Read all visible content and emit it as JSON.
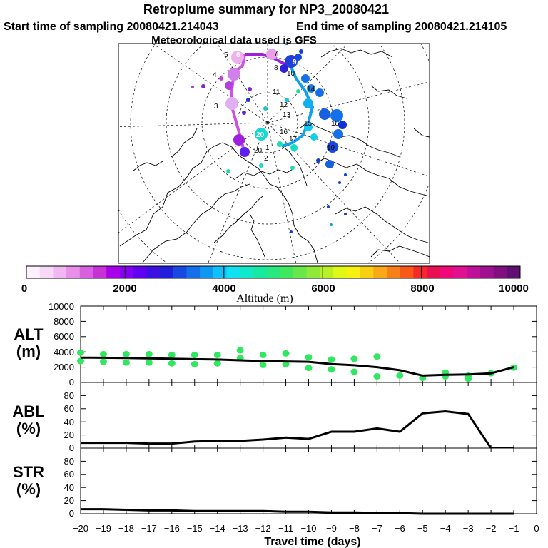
{
  "header": {
    "title": "Retroplume summary for NP3_20080421",
    "start_label": "Start time of sampling 20080421.214043",
    "end_label": "End time of sampling 20080421.214105",
    "met_label": "Meteorological data used is GFS"
  },
  "colorbar": {
    "label": "Altitude (m)",
    "ticks": [
      "0",
      "2000",
      "4000",
      "6000",
      "8000",
      "10000"
    ],
    "colors": [
      "#fff0ff",
      "#f8d8f8",
      "#f0b8f0",
      "#e890e8",
      "#d860e0",
      "#c830d8",
      "#a800e8",
      "#8400f0",
      "#6000f0",
      "#3c10e0",
      "#2020d8",
      "#1848e0",
      "#1470e8",
      "#1098f0",
      "#10c0f8",
      "#10e0f0",
      "#10e8c8",
      "#18e8a0",
      "#28e880",
      "#40e860",
      "#68e848",
      "#90e838",
      "#b8f028",
      "#e0f818",
      "#f8f010",
      "#f8d010",
      "#f8a818",
      "#f88018",
      "#f85818",
      "#f82828",
      "#e81050",
      "#f00878",
      "#e01090",
      "#c01098",
      "#a01090",
      "#801080",
      "#601070"
    ]
  },
  "map": {
    "labels": [
      "1",
      "2",
      "3",
      "4",
      "5",
      "6",
      "7",
      "8",
      "9",
      "10",
      "11",
      "12",
      "13",
      "14",
      "15",
      "16",
      "17",
      "18",
      "19",
      "20",
      "20"
    ]
  },
  "panels": {
    "alt": {
      "label1": "ALT",
      "label2": "(m)",
      "yticks": [
        "0",
        "2000",
        "4000",
        "6000",
        "8000",
        "10000"
      ]
    },
    "abl": {
      "label1": "ABL",
      "label2": "(%)",
      "yticks": [
        "0",
        "20",
        "40",
        "60",
        "80"
      ]
    },
    "str": {
      "label1": "STR",
      "label2": "(%)",
      "yticks": [
        "0",
        "20",
        "40",
        "60",
        "80"
      ]
    }
  },
  "xaxis": {
    "label": "Travel time (days)",
    "ticks": [
      "−20",
      "−19",
      "−18",
      "−17",
      "−16",
      "−15",
      "−14",
      "−13",
      "−12",
      "−11",
      "−10",
      "−9",
      "−8",
      "−7",
      "−6",
      "−5",
      "−4",
      "−3",
      "−2",
      "−1",
      "0"
    ]
  },
  "chart_data": [
    {
      "type": "line",
      "name": "ALT",
      "title": "Retroplume summary for NP3_20080421",
      "xlabel": "Travel time (days)",
      "ylabel": "ALT (m)",
      "xlim": [
        -20,
        0
      ],
      "ylim": [
        0,
        10000
      ],
      "x": [
        -20,
        -19,
        -18,
        -17,
        -16,
        -15,
        -14,
        -13,
        -12,
        -11,
        -10,
        -9,
        -8,
        -7,
        -6,
        -5,
        -4,
        -3,
        -2,
        -1
      ],
      "values": [
        3250,
        3230,
        3200,
        3150,
        3100,
        3050,
        3000,
        2900,
        2800,
        2750,
        2700,
        2400,
        2250,
        2000,
        1600,
        900,
        1000,
        1050,
        1200,
        2000
      ],
      "scatter": {
        "x": [
          -20,
          -20,
          -19,
          -19,
          -18,
          -18,
          -17,
          -17,
          -16,
          -16,
          -15,
          -15,
          -14,
          -14,
          -13,
          -13,
          -12,
          -12,
          -11,
          -11,
          -10,
          -10,
          -9,
          -9,
          -8,
          -8,
          -7,
          -7,
          -6,
          -5,
          -4,
          -4,
          -3,
          -3,
          -2,
          -1
        ],
        "y": [
          3900,
          2800,
          3700,
          2700,
          3700,
          2600,
          3700,
          2600,
          3600,
          2500,
          3600,
          2400,
          3600,
          2500,
          4200,
          3200,
          3600,
          2300,
          3800,
          2400,
          3300,
          1900,
          3000,
          1700,
          3100,
          1400,
          3400,
          800,
          900,
          600,
          1300,
          800,
          900,
          500,
          1200,
          1950
        ]
      }
    },
    {
      "type": "line",
      "name": "ABL",
      "ylabel": "ABL (%)",
      "xlim": [
        -20,
        0
      ],
      "ylim": [
        0,
        100
      ],
      "x": [
        -20,
        -19,
        -18,
        -17,
        -16,
        -15,
        -14,
        -13,
        -12,
        -11,
        -10,
        -9,
        -8,
        -7,
        -6,
        -5,
        -4,
        -3,
        -2,
        -1
      ],
      "values": [
        8,
        8,
        8,
        7,
        7,
        10,
        11,
        11,
        13,
        16,
        14,
        25,
        25,
        30,
        25,
        53,
        56,
        52,
        0,
        0
      ]
    },
    {
      "type": "line",
      "name": "STR",
      "ylabel": "STR (%)",
      "xlim": [
        -20,
        0
      ],
      "ylim": [
        0,
        100
      ],
      "x": [
        -20,
        -19,
        -18,
        -17,
        -16,
        -15,
        -14,
        -13,
        -12,
        -11,
        -10,
        -9,
        -8,
        -7,
        -6,
        -5,
        -4,
        -3,
        -2,
        -1
      ],
      "values": [
        7,
        7,
        6,
        5,
        5,
        4,
        4,
        4,
        4,
        3,
        3,
        2,
        2,
        1,
        1,
        0,
        0,
        0,
        0,
        0
      ]
    }
  ]
}
